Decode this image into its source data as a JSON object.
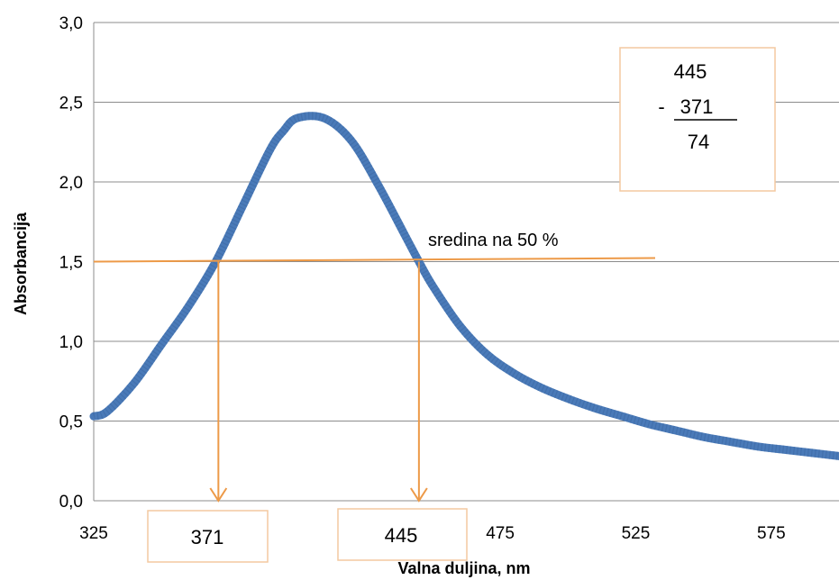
{
  "chart_data": {
    "type": "line",
    "title": "",
    "xlabel": "Valna duljina, nm",
    "ylabel": "Absorbancija",
    "xlim": [
      325,
      600
    ],
    "ylim": [
      0,
      3
    ],
    "grid": true,
    "x_ticks": [
      "325",
      "475",
      "525",
      "575"
    ],
    "y_ticks": [
      "0,0",
      "0,5",
      "1,0",
      "1,5",
      "2,0",
      "2,5",
      "3,0"
    ],
    "series": [
      {
        "color": "#4a7ab8",
        "x": [
          325,
          330,
          340,
          350,
          360,
          370,
          380,
          390,
          395,
          400,
          410,
          420,
          430,
          440,
          445,
          450,
          460,
          470,
          480,
          490,
          500,
          510,
          520,
          530,
          540,
          550,
          560,
          570,
          580,
          590,
          600
        ],
        "y": [
          0.53,
          0.56,
          0.74,
          0.98,
          1.22,
          1.5,
          1.85,
          2.2,
          2.32,
          2.4,
          2.4,
          2.26,
          1.98,
          1.66,
          1.5,
          1.35,
          1.1,
          0.92,
          0.8,
          0.71,
          0.64,
          0.58,
          0.53,
          0.48,
          0.44,
          0.4,
          0.37,
          0.34,
          0.32,
          0.3,
          0.28
        ]
      }
    ],
    "annotations": {
      "half_height_label": "sredina na 50 %",
      "half_height_value": 1.5,
      "left_wavelength": "371",
      "right_wavelength": "445",
      "calc_top": "445",
      "calc_minus": "-",
      "calc_middle": "371",
      "calc_result": "74",
      "annotation_color": "#ed9a48"
    }
  }
}
